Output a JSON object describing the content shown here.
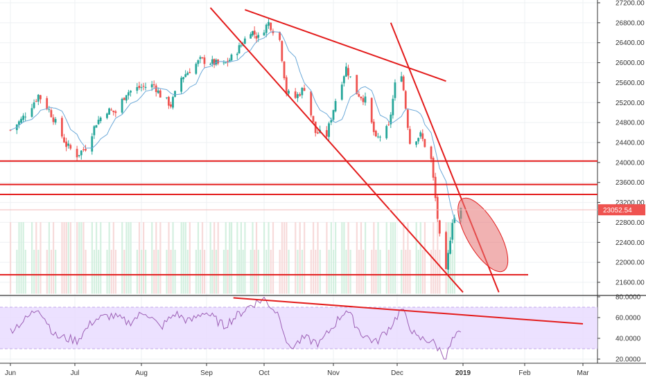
{
  "chart_data": [
    {
      "type": "candlestick",
      "title": "",
      "x_ticks": [
        "Jun",
        "Jul",
        "Aug",
        "Sep",
        "Oct",
        "Nov",
        "Dec",
        "2019",
        "Feb",
        "Mar"
      ],
      "y_ticks": [
        "27200.00",
        "26800.00",
        "26400.00",
        "26000.00",
        "25600.00",
        "25200.00",
        "24800.00",
        "24400.00",
        "24000.00",
        "23600.00",
        "23200.00",
        "22800.00",
        "22400.00",
        "22000.00",
        "21600.00"
      ],
      "ylim": [
        21400,
        27300
      ],
      "last_price_label": "23052.54",
      "last_price": 23052.54,
      "close_path": [
        [
          "2018-06-01",
          24650
        ],
        [
          "2018-06-06",
          24850
        ],
        [
          "2018-06-11",
          25150
        ],
        [
          "2018-06-14",
          25350
        ],
        [
          "2018-06-19",
          25050
        ],
        [
          "2018-06-22",
          24800
        ],
        [
          "2018-06-27",
          24350
        ],
        [
          "2018-07-02",
          24150
        ],
        [
          "2018-07-06",
          24300
        ],
        [
          "2018-07-11",
          24800
        ],
        [
          "2018-07-16",
          25050
        ],
        [
          "2018-07-20",
          25000
        ],
        [
          "2018-07-25",
          25400
        ],
        [
          "2018-07-31",
          25500
        ],
        [
          "2018-08-07",
          25550
        ],
        [
          "2018-08-10",
          25350
        ],
        [
          "2018-08-15",
          25150
        ],
        [
          "2018-08-20",
          25700
        ],
        [
          "2018-08-24",
          25850
        ],
        [
          "2018-08-29",
          26050
        ],
        [
          "2018-09-04",
          26000
        ],
        [
          "2018-09-10",
          25950
        ],
        [
          "2018-09-14",
          26100
        ],
        [
          "2018-09-19",
          26350
        ],
        [
          "2018-09-24",
          26650
        ],
        [
          "2018-09-28",
          26500
        ],
        [
          "2018-10-03",
          26800
        ],
        [
          "2018-10-08",
          26450
        ],
        [
          "2018-10-11",
          25400
        ],
        [
          "2018-10-15",
          25300
        ],
        [
          "2018-10-19",
          25500
        ],
        [
          "2018-10-24",
          24600
        ],
        [
          "2018-10-29",
          24550
        ],
        [
          "2018-11-02",
          25250
        ],
        [
          "2018-11-07",
          25900
        ],
        [
          "2018-11-12",
          25400
        ],
        [
          "2018-11-16",
          25250
        ],
        [
          "2018-11-21",
          24450
        ],
        [
          "2018-11-27",
          24700
        ],
        [
          "2018-11-30",
          25550
        ],
        [
          "2018-12-03",
          25800
        ],
        [
          "2018-12-07",
          24400
        ],
        [
          "2018-12-12",
          24550
        ],
        [
          "2018-12-17",
          24050
        ],
        [
          "2018-12-21",
          22500
        ],
        [
          "2018-12-24",
          21790
        ],
        [
          "2018-12-27",
          22850
        ],
        [
          "2018-12-31",
          23050
        ]
      ],
      "horizontal_lines": [
        24030,
        23560,
        23360,
        21750
      ],
      "trendlines": [
        {
          "from": [
            "2018-09-03",
            27100
          ],
          "to": [
            "2019-01-01",
            21400
          ]
        },
        {
          "from": [
            "2018-09-21",
            27060
          ],
          "to": [
            "2018-12-24",
            25630
          ]
        },
        {
          "from": [
            "2018-11-28",
            26800
          ],
          "to": [
            "2019-01-19",
            21400
          ]
        }
      ],
      "volume": {
        "ylim": [
          0,
          100
        ],
        "values": [
          100,
          100,
          100,
          55,
          55,
          100,
          100,
          100
        ]
      },
      "ellipse_annotation": {
        "center": [
          "2019-01-11",
          22550
        ],
        "note": "shaded projection zone"
      }
    },
    {
      "type": "line",
      "title": "",
      "y_ticks": [
        "80.0000",
        "60.0000",
        "40.0000",
        "20.0000"
      ],
      "ylim": [
        18,
        82
      ],
      "band": [
        30,
        70
      ],
      "x": [
        "2018-06-01",
        "2018-06-08",
        "2018-06-14",
        "2018-06-22",
        "2018-07-02",
        "2018-07-10",
        "2018-07-18",
        "2018-07-26",
        "2018-08-03",
        "2018-08-10",
        "2018-08-17",
        "2018-08-24",
        "2018-08-31",
        "2018-09-10",
        "2018-09-17",
        "2018-09-24",
        "2018-10-01",
        "2018-10-08",
        "2018-10-12",
        "2018-10-19",
        "2018-10-26",
        "2018-11-02",
        "2018-11-07",
        "2018-11-14",
        "2018-11-21",
        "2018-11-28",
        "2018-12-03",
        "2018-12-10",
        "2018-12-17",
        "2018-12-24",
        "2018-12-27",
        "2018-12-31"
      ],
      "values": [
        48,
        58,
        70,
        42,
        38,
        58,
        62,
        55,
        66,
        50,
        64,
        56,
        66,
        52,
        62,
        72,
        78,
        62,
        30,
        40,
        35,
        55,
        68,
        45,
        36,
        52,
        68,
        40,
        38,
        22,
        38,
        46
      ],
      "trendline": {
        "from": [
          "2018-09-15",
          79
        ],
        "to": [
          "2019-03-01",
          54
        ]
      }
    }
  ]
}
